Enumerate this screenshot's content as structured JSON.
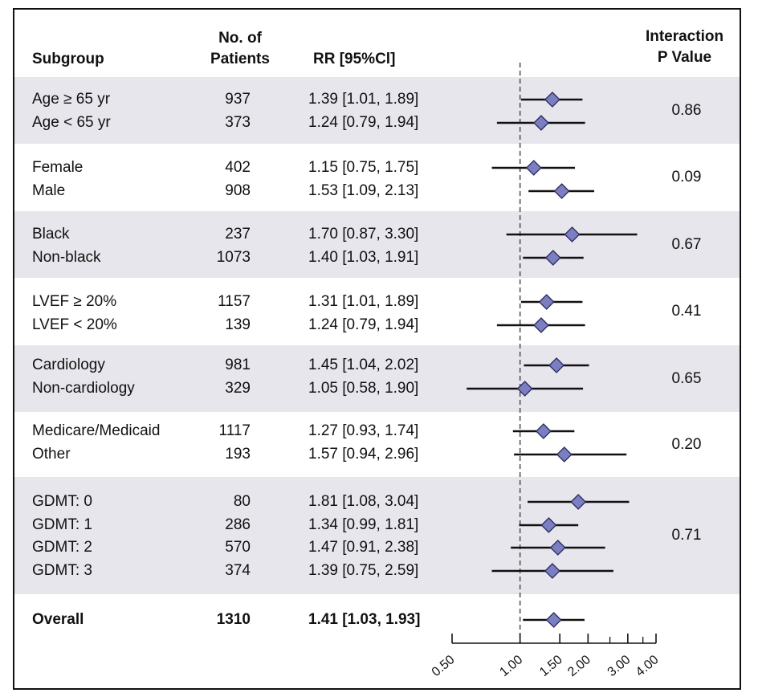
{
  "headers": {
    "subgroup": "Subgroup",
    "patients_line1": "No. of",
    "patients_line2": "Patients",
    "rr": "RR [95%Cl]",
    "pvalue_line1": "Interaction",
    "pvalue_line2": "P Value"
  },
  "chart_data": {
    "type": "forest",
    "title": "",
    "xlabel": "",
    "x_scale": "log",
    "xlim": [
      0.5,
      4.0
    ],
    "reference_line": 1.0,
    "ticks": [
      0.5,
      1.0,
      1.5,
      2.0,
      3.0,
      4.0
    ],
    "tick_labels": [
      "0.50",
      "1.00",
      "1.50",
      "2.00",
      "3.00",
      "4.00"
    ],
    "groups": [
      {
        "p_value": "0.86",
        "rows": [
          {
            "label": "Age ≥ 65 yr",
            "n": "937",
            "rr_text": "1.39 [1.01, 1.89]",
            "rr": 1.39,
            "lo": 1.01,
            "hi": 1.89
          },
          {
            "label": "Age < 65 yr",
            "n": "373",
            "rr_text": "1.24 [0.79, 1.94]",
            "rr": 1.24,
            "lo": 0.79,
            "hi": 1.94
          }
        ]
      },
      {
        "p_value": "0.09",
        "rows": [
          {
            "label": "Female",
            "n": "402",
            "rr_text": "1.15 [0.75, 1.75]",
            "rr": 1.15,
            "lo": 0.75,
            "hi": 1.75
          },
          {
            "label": "Male",
            "n": "908",
            "rr_text": "1.53 [1.09, 2.13]",
            "rr": 1.53,
            "lo": 1.09,
            "hi": 2.13
          }
        ]
      },
      {
        "p_value": "0.67",
        "rows": [
          {
            "label": "Black",
            "n": "237",
            "rr_text": "1.70 [0.87, 3.30]",
            "rr": 1.7,
            "lo": 0.87,
            "hi": 3.3
          },
          {
            "label": "Non-black",
            "n": "1073",
            "rr_text": "1.40 [1.03, 1.91]",
            "rr": 1.4,
            "lo": 1.03,
            "hi": 1.91
          }
        ]
      },
      {
        "p_value": "0.41",
        "rows": [
          {
            "label": "LVEF ≥ 20%",
            "n": "1157",
            "rr_text": "1.31 [1.01, 1.89]",
            "rr": 1.31,
            "lo": 1.01,
            "hi": 1.89
          },
          {
            "label": "LVEF < 20%",
            "n": "139",
            "rr_text": "1.24 [0.79, 1.94]",
            "rr": 1.24,
            "lo": 0.79,
            "hi": 1.94
          }
        ]
      },
      {
        "p_value": "0.65",
        "rows": [
          {
            "label": "Cardiology",
            "n": "981",
            "rr_text": "1.45 [1.04, 2.02]",
            "rr": 1.45,
            "lo": 1.04,
            "hi": 2.02
          },
          {
            "label": "Non-cardiology",
            "n": "329",
            "rr_text": "1.05 [0.58, 1.90]",
            "rr": 1.05,
            "lo": 0.58,
            "hi": 1.9
          }
        ]
      },
      {
        "p_value": "0.20",
        "rows": [
          {
            "label": "Medicare/Medicaid",
            "n": "1117",
            "rr_text": "1.27 [0.93, 1.74]",
            "rr": 1.27,
            "lo": 0.93,
            "hi": 1.74
          },
          {
            "label": "Other",
            "n": "193",
            "rr_text": "1.57 [0.94, 2.96]",
            "rr": 1.57,
            "lo": 0.94,
            "hi": 2.96
          }
        ]
      },
      {
        "p_value": "0.71",
        "rows": [
          {
            "label": "GDMT: 0",
            "n": "80",
            "rr_text": "1.81 [1.08, 3.04]",
            "rr": 1.81,
            "lo": 1.08,
            "hi": 3.04
          },
          {
            "label": "GDMT: 1",
            "n": "286",
            "rr_text": "1.34 [0.99, 1.81]",
            "rr": 1.34,
            "lo": 0.99,
            "hi": 1.81
          },
          {
            "label": "GDMT: 2",
            "n": "570",
            "rr_text": "1.47 [0.91, 2.38]",
            "rr": 1.47,
            "lo": 0.91,
            "hi": 2.38
          },
          {
            "label": "GDMT: 3",
            "n": "374",
            "rr_text": "1.39 [0.75, 2.59]",
            "rr": 1.39,
            "lo": 0.75,
            "hi": 2.59
          }
        ]
      }
    ],
    "overall": {
      "label": "Overall",
      "n": "1310",
      "rr_text": "1.41 [1.03, 1.93]",
      "rr": 1.41,
      "lo": 1.03,
      "hi": 1.93
    },
    "colors": {
      "marker_fill": "#7b7fc2",
      "marker_stroke": "#2a2a5a",
      "band": "#e6e6ec",
      "line": "#111111"
    }
  }
}
